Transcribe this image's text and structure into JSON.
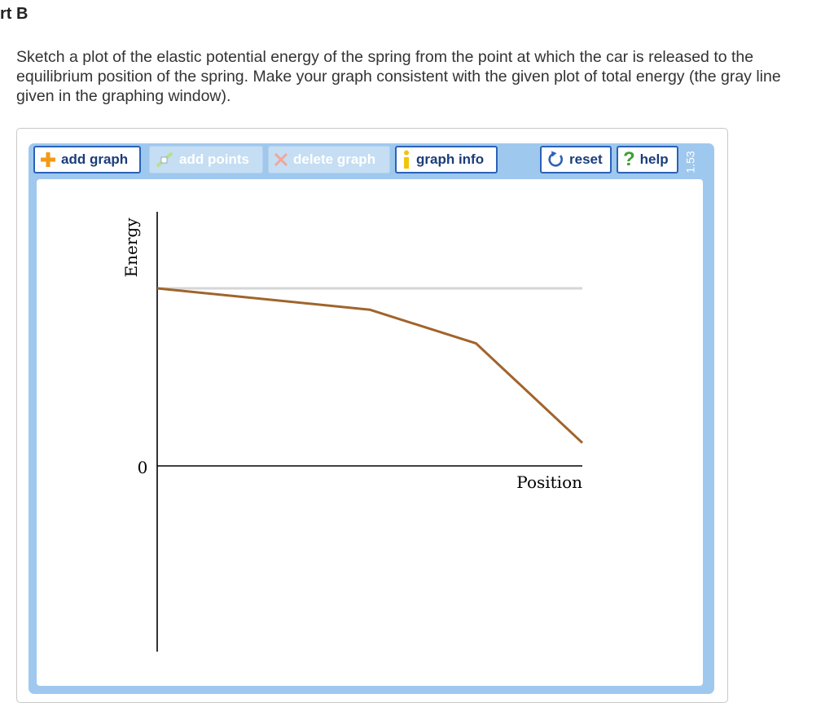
{
  "header": {
    "part_title": "rt B",
    "prompt": "Sketch a plot of the elastic potential energy of the spring from the point at which the car is released to the equilibrium position of the spring. Make your graph consistent with the given plot of total energy (the gray line given in the graphing window)."
  },
  "toolbar": {
    "add_graph": "add graph",
    "add_points": "add points",
    "delete_graph": "delete graph",
    "graph_info": "graph info",
    "reset": "reset",
    "help": "help",
    "version": "1.53"
  },
  "colors": {
    "accent": "#2a62b8",
    "add_icon": "#f29a16",
    "info_icon": "#f2c40c",
    "reset_icon": "#2a62b8",
    "help_icon": "#3aa12e",
    "frame": "#9fc8ef",
    "total_energy_line": "#d6d6d6",
    "user_graph_line": "#a0642c",
    "axis": "#000000"
  },
  "chart_data": {
    "type": "line",
    "xlabel": "Position",
    "ylabel": "Energy",
    "yticks": [
      "0"
    ],
    "xlim": [
      0,
      1
    ],
    "ylim": [
      -0.9,
      1.0
    ],
    "series": [
      {
        "role": "total-energy-reference",
        "x": [
          0,
          1
        ],
        "y": [
          1.0,
          1.0
        ]
      },
      {
        "role": "user-sketch",
        "x": [
          0,
          0.5,
          0.75,
          1.0
        ],
        "y": [
          1.0,
          0.88,
          0.69,
          0.13
        ]
      }
    ]
  }
}
